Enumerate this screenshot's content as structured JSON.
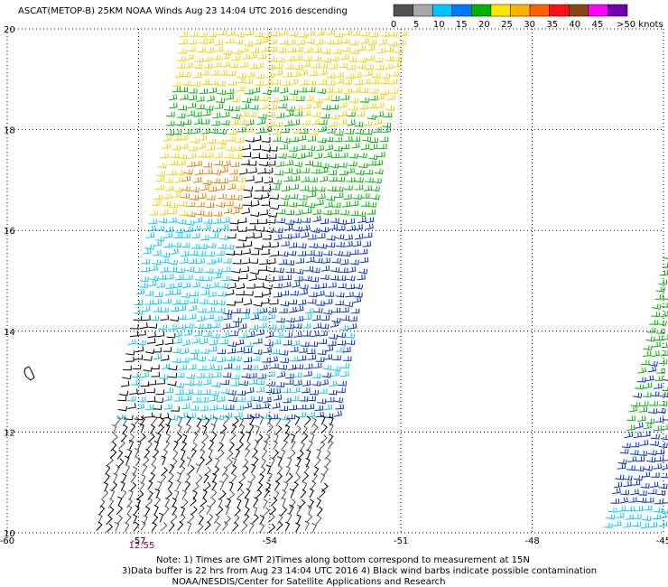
{
  "header": {
    "title": "ASCAT(METOP-B) 25KM NOAA Winds  Aug 23 14:04 UTC 2016 descending"
  },
  "legend": {
    "labels": [
      "0",
      "5",
      "10",
      "15",
      "20",
      "25",
      "30",
      "35",
      "40",
      "45",
      ">50 knots"
    ],
    "colors": [
      "#505050",
      "#a8a8a8",
      "#00c8ff",
      "#0078ff",
      "#00b400",
      "#ffe600",
      "#ffb000",
      "#ff6000",
      "#ff1010",
      "#8b4513",
      "#ff00ff",
      "#7000b0"
    ]
  },
  "map": {
    "lat_labels": [
      20,
      18,
      16,
      14,
      12,
      10
    ],
    "lon_labels": [
      -60,
      -57,
      -54,
      -51,
      -48,
      -45
    ],
    "pass_time": "12:55"
  },
  "notes": [
    "Note: 1) Times are GMT 2)Times along bottom correspond to measurement at 15N",
    "3)Data buffer is 22 hrs from Aug 23 14:04 UTC 2016 4) Black wind barbs indicate possible contamination",
    "NOAA/NESDIS/Center for Satellite Applications and Research"
  ]
}
